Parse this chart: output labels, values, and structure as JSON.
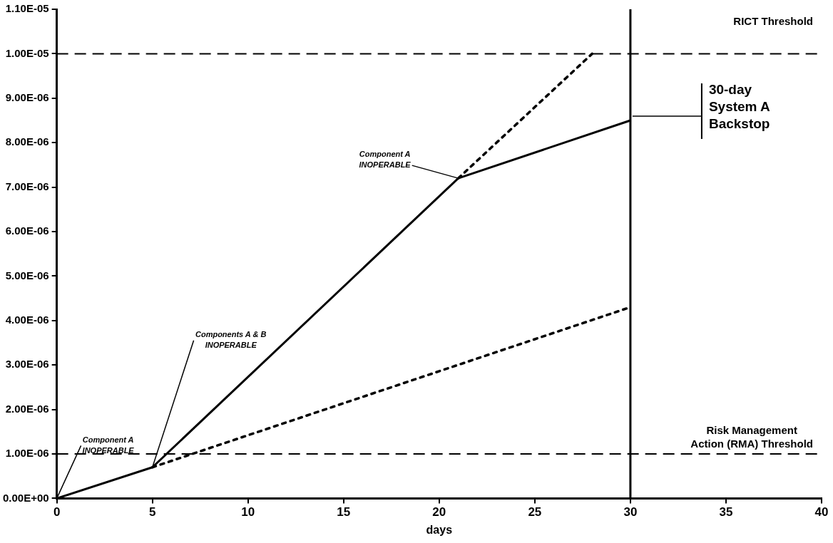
{
  "chart_data": {
    "type": "line",
    "xlabel": "days",
    "series": [
      {
        "color": "#000000",
        "line_style": "solid",
        "x": [
          0,
          5,
          21,
          30
        ],
        "values": [
          0,
          7e-07,
          7.2e-06,
          8.5e-06
        ]
      },
      {
        "color": "#000000",
        "line_style": "dotted",
        "x": [
          21,
          28
        ],
        "values": [
          7.2e-06,
          1e-05
        ]
      },
      {
        "color": "#000000",
        "line_style": "dotted",
        "x": [
          5,
          30
        ],
        "values": [
          7e-07,
          4.3e-06
        ]
      }
    ],
    "xlim": [
      0,
      40
    ],
    "xticks": [
      0,
      5,
      10,
      15,
      20,
      25,
      30,
      35,
      40
    ],
    "ylim": [
      0,
      1.1e-05
    ],
    "yticks": [
      {
        "value": 0,
        "label": "0.00E+00"
      },
      {
        "value": 1e-06,
        "label": "1.00E-06"
      },
      {
        "value": 2e-06,
        "label": "2.00E-06"
      },
      {
        "value": 3e-06,
        "label": "3.00E-06"
      },
      {
        "value": 4e-06,
        "label": "4.00E-06"
      },
      {
        "value": 5e-06,
        "label": "5.00E-06"
      },
      {
        "value": 6e-06,
        "label": "6.00E-06"
      },
      {
        "value": 7e-06,
        "label": "7.00E-06"
      },
      {
        "value": 8e-06,
        "label": "8.00E-06"
      },
      {
        "value": 9e-06,
        "label": "9.00E-06"
      },
      {
        "value": 1e-05,
        "label": "1.00E-05"
      },
      {
        "value": 1.1e-05,
        "label": "1.10E-05"
      }
    ],
    "ref_lines": [
      {
        "axis": "y",
        "value": 1e-05,
        "label": "RICT Threshold",
        "line_style": "dashed"
      },
      {
        "axis": "y",
        "value": 1e-06,
        "label": "Risk Management Action (RMA) Threshold",
        "line_style": "dashed"
      },
      {
        "axis": "x",
        "value": 30,
        "label": "30-day System A Backstop",
        "line_style": "solid"
      }
    ],
    "annotations": [
      {
        "text": "Component A INOPERABLE",
        "x": 0,
        "y": 0
      },
      {
        "text": "Components A & B INOPERABLE",
        "x": 5,
        "y": 7e-07
      },
      {
        "text": "Component A INOPERABLE",
        "x": 21,
        "y": 7.2e-06
      }
    ],
    "grid": false,
    "legend": false,
    "marker": "none"
  }
}
